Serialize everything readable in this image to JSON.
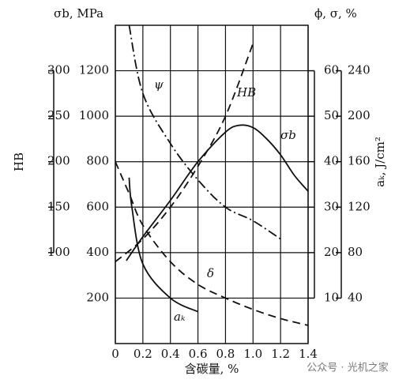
{
  "chart_data": {
    "type": "line",
    "xlabel": "含碳量, %",
    "ylabel": "σb, MPa",
    "y2label": "ϕ, σ, %",
    "y3label": "HB",
    "y4label": "aₖ, J/cm²",
    "watermark": "公众号 · 光机之家",
    "xlim": [
      0,
      1.4
    ],
    "xticks": [
      0,
      0.2,
      0.4,
      0.6,
      0.8,
      {
        "value": 1,
        "label": "1.0"
      },
      1.2,
      1.4
    ],
    "ylim": [
      0,
      1400
    ],
    "yticks": [
      200,
      400,
      600,
      800,
      1000,
      1200
    ],
    "y2lim": [
      0,
      70
    ],
    "y2ticks": [
      10,
      20,
      30,
      40,
      50,
      60
    ],
    "y3lim": [
      0,
      350
    ],
    "y3ticks": [
      100,
      150,
      200,
      250,
      300
    ],
    "y4lim": [
      0,
      280
    ],
    "y4ticks": [
      40,
      80,
      120,
      160,
      200,
      240
    ],
    "grid": true,
    "series": [
      {
        "name": "σb",
        "axis": "y",
        "style": "solid",
        "color": "#111",
        "x": [
          0.08,
          0.2,
          0.4,
          0.6,
          0.8,
          0.9,
          1.0,
          1.1,
          1.2,
          1.3,
          1.4
        ],
        "values": [
          365,
          470,
          630,
          800,
          930,
          960,
          950,
          900,
          830,
          740,
          670
        ]
      },
      {
        "name": "HB",
        "axis": "y3",
        "style": "dashed",
        "color": "#111",
        "x": [
          0,
          0.2,
          0.4,
          0.6,
          0.8,
          1.0
        ],
        "values": [
          90,
          115,
          150,
          195,
          250,
          330
        ]
      },
      {
        "name": "ψ",
        "axis": "y2",
        "style": "dashdot",
        "color": "#111",
        "x": [
          0.1,
          0.2,
          0.4,
          0.6,
          0.8,
          1.0,
          1.2
        ],
        "values": [
          70,
          55,
          44,
          36,
          30,
          27,
          23
        ]
      },
      {
        "name": "δ",
        "axis": "y2",
        "style": "dashed",
        "color": "#111",
        "x": [
          0,
          0.1,
          0.2,
          0.4,
          0.6,
          0.8,
          1.0,
          1.2,
          1.4
        ],
        "values": [
          40,
          33,
          26,
          18,
          13,
          10,
          7.5,
          5.5,
          4
        ]
      },
      {
        "name": "aₖ",
        "axis": "y4",
        "style": "solid",
        "color": "#111",
        "x": [
          0.1,
          0.12,
          0.2,
          0.4,
          0.6
        ],
        "values": [
          146,
          120,
          70,
          40,
          28
        ]
      }
    ]
  }
}
